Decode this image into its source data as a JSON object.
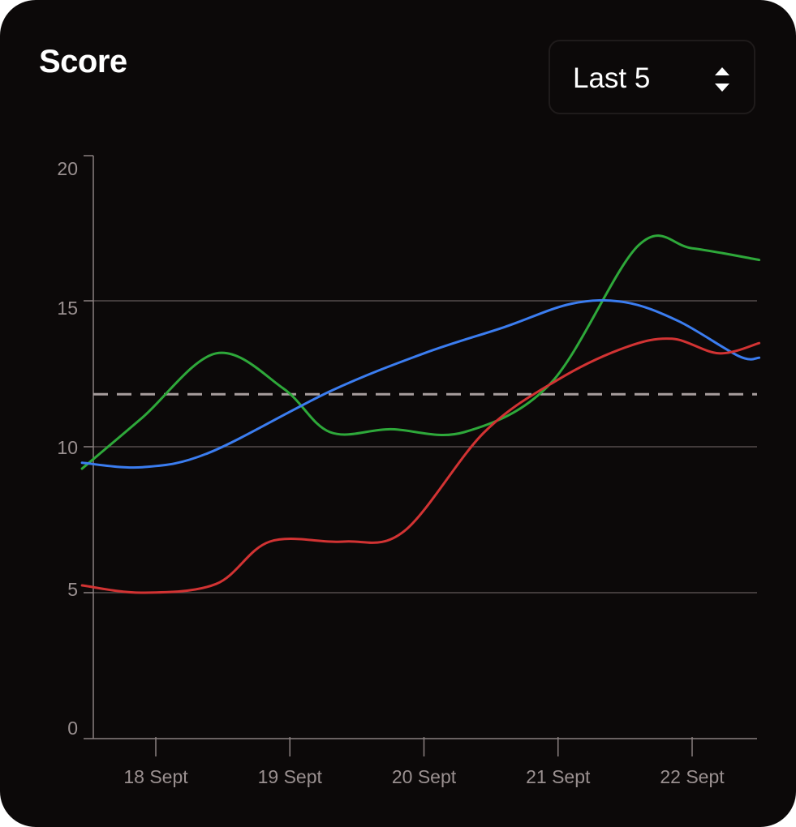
{
  "header": {
    "title": "Score",
    "range_select": {
      "value": "Last 5",
      "icon": "sort-updown-icon"
    }
  },
  "colors": {
    "background": "#0c0909",
    "grid": "#554c4c",
    "axis": "#8a8080",
    "tick_label": "#9a9090",
    "reference_line": "#a89e9e"
  },
  "chart_data": {
    "type": "line",
    "title": "Score",
    "xlabel": "",
    "ylabel": "",
    "categories": [
      "18 Sept",
      "19 Sept",
      "20 Sept",
      "21 Sept",
      "22 Sept"
    ],
    "x_range": [
      -0.55,
      4.5
    ],
    "ylim": [
      0,
      20
    ],
    "y_ticks": [
      0,
      5,
      10,
      15,
      20
    ],
    "grid": "horizontal",
    "reference_line": {
      "y": 11.8,
      "style": "dashed"
    },
    "series": [
      {
        "color": "#2ea83a",
        "points": [
          [
            -0.55,
            9.25
          ],
          [
            -0.1,
            11.0
          ],
          [
            0.45,
            13.2
          ],
          [
            0.95,
            12.0
          ],
          [
            1.3,
            10.5
          ],
          [
            1.75,
            10.6
          ],
          [
            2.3,
            10.5
          ],
          [
            2.95,
            12.2
          ],
          [
            3.6,
            16.9
          ],
          [
            4.0,
            16.8
          ],
          [
            4.5,
            16.4
          ]
        ]
      },
      {
        "color": "#3b7df0",
        "points": [
          [
            -0.55,
            9.45
          ],
          [
            -0.1,
            9.3
          ],
          [
            0.4,
            9.8
          ],
          [
            1.3,
            11.9
          ],
          [
            2.0,
            13.2
          ],
          [
            2.6,
            14.1
          ],
          [
            3.1,
            14.9
          ],
          [
            3.5,
            14.95
          ],
          [
            3.9,
            14.3
          ],
          [
            4.35,
            13.1
          ],
          [
            4.5,
            13.05
          ]
        ]
      },
      {
        "color": "#d23333",
        "points": [
          [
            -0.55,
            5.25
          ],
          [
            -0.1,
            5.0
          ],
          [
            0.45,
            5.3
          ],
          [
            0.85,
            6.75
          ],
          [
            1.4,
            6.75
          ],
          [
            1.85,
            7.1
          ],
          [
            2.45,
            10.5
          ],
          [
            3.0,
            12.3
          ],
          [
            3.5,
            13.4
          ],
          [
            3.85,
            13.7
          ],
          [
            4.2,
            13.2
          ],
          [
            4.5,
            13.55
          ]
        ]
      }
    ]
  }
}
